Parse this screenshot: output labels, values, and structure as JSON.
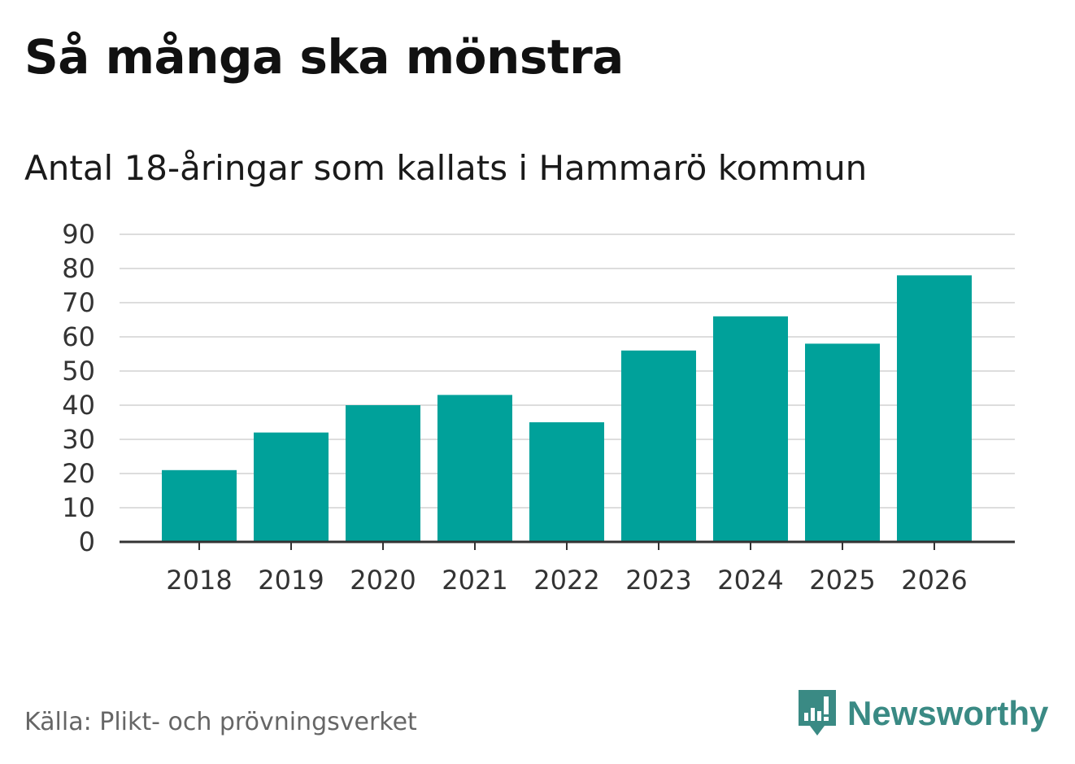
{
  "title": "Så många ska mönstra",
  "subtitle": "Antal 18-åringar som kallats i Hammarö kommun",
  "source": "Källa: Plikt- och prövningsverket",
  "brand": {
    "name": "Newsworthy",
    "icon": "newsworthy-logo-icon"
  },
  "colors": {
    "bar": "#00a19a",
    "grid": "#dddddd",
    "axis": "#333333",
    "brand": "#3a8a84"
  },
  "chart_data": {
    "type": "bar",
    "title": "Antal 18-åringar som kallats i Hammarö kommun",
    "xlabel": "",
    "ylabel": "",
    "categories": [
      "2018",
      "2019",
      "2020",
      "2021",
      "2022",
      "2023",
      "2024",
      "2025",
      "2026"
    ],
    "values": [
      21,
      32,
      40,
      43,
      35,
      56,
      66,
      58,
      78
    ],
    "ylim": [
      0,
      90
    ],
    "yticks": [
      0,
      10,
      20,
      30,
      40,
      50,
      60,
      70,
      80,
      90
    ],
    "grid": true
  }
}
